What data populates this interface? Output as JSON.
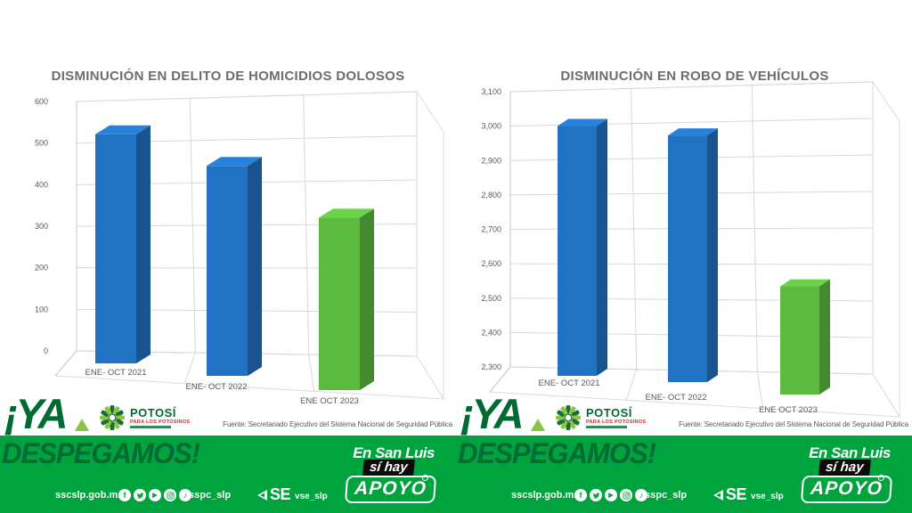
{
  "banner": {
    "ya": "¡YA",
    "despegamos": "DESPEGAMOS!",
    "potosi": {
      "name": "POTOSÍ",
      "tagline": "PARA LOS POTOSINOS"
    },
    "slogan": {
      "line1": "En San Luis",
      "line2": "sí hay",
      "line3": "APOYO"
    },
    "website": "sscslp.gob.mx",
    "handle": "sspc_slp",
    "se": {
      "label": "SE",
      "handle": "vse_slp"
    },
    "social_icons": [
      "facebook-icon",
      "twitter-icon",
      "youtube-icon",
      "instagram-icon",
      "tiktok-icon"
    ],
    "colors": {
      "band_green": "#00a33d",
      "dark_green": "#006b33",
      "accent_green": "#8cc63f",
      "tagline_red": "#d22630",
      "bar_blue": "#2272c3",
      "bar_green": "#5cba3e"
    }
  },
  "chart_data": [
    {
      "type": "bar",
      "style": "3d-column",
      "title": "DISMINUCIÓN EN DELITO DE HOMICIDIOS DOLOSOS",
      "categories": [
        "ENE- OCT 2021",
        "ENE- OCT 2022",
        "ENE OCT 2023"
      ],
      "values": [
        530,
        455,
        340
      ],
      "bar_colors": [
        "#2272c3",
        "#2272c3",
        "#5cba3e"
      ],
      "ylim": [
        0,
        600
      ],
      "yticks": [
        "600",
        "500",
        "400",
        "300",
        "200",
        "100",
        "0"
      ],
      "grid": true,
      "legend": false,
      "source": "Fuente: Secretariado Ejecutivo del Sistema Nacional de Seguridad Pública"
    },
    {
      "type": "bar",
      "style": "3d-column",
      "title": "DISMINUCIÓN EN ROBO DE VEHÍCULOS",
      "categories": [
        "ENE- OCT 2021",
        "ENE- OCT 2022",
        "ENE OCT 2023"
      ],
      "values": [
        3005,
        2970,
        2540
      ],
      "bar_colors": [
        "#2272c3",
        "#2272c3",
        "#5cba3e"
      ],
      "ylim": [
        2300,
        3100
      ],
      "yticks": [
        "3,100",
        "3,000",
        "2,900",
        "2,800",
        "2,700",
        "2,600",
        "2,500",
        "2,400",
        "2,300"
      ],
      "grid": true,
      "legend": false,
      "source": "Fuente: Secretariado Ejecutivo del Sistema Nacional de Seguridad Pública"
    }
  ]
}
